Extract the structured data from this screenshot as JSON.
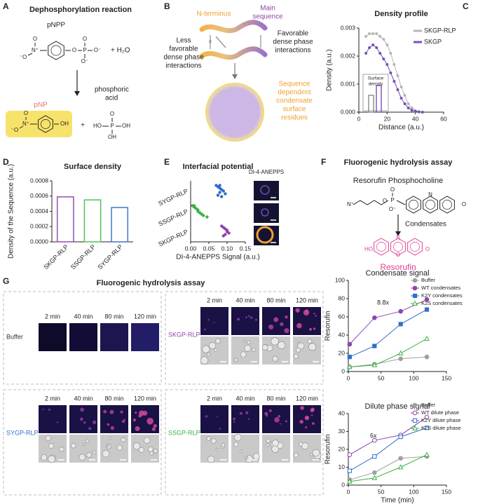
{
  "panels": {
    "letters": [
      "A",
      "B",
      "C",
      "D",
      "E",
      "F",
      "G"
    ],
    "A": {
      "title": "Dephosphorylation reaction",
      "reactant": "pNPP",
      "water": "+ H₂O",
      "pnpp_atoms": [
        "O",
        "N⁺",
        "⁻O",
        "O",
        "P",
        "O",
        "O⁻",
        "O⁻"
      ],
      "product": "pNP",
      "product_atoms": [
        "O",
        "N⁺",
        "⁻O",
        "OH"
      ],
      "plus": "+",
      "acid_lines": [
        "phosphoric",
        "acid"
      ],
      "acid_atoms": [
        "O",
        "HO",
        "P",
        "OH",
        "OH"
      ]
    },
    "B": {
      "n_terminus": "N-terminus",
      "main_sequence": [
        "Main",
        "sequence"
      ],
      "less_favorable": [
        "Less",
        "favorable",
        "dense phase",
        "interactions"
      ],
      "favorable": [
        "Favorable",
        "dense phase",
        "interactions"
      ],
      "surface": [
        "Sequence",
        "dependent",
        "condensate",
        "surface",
        "residues"
      ]
    },
    "E": {
      "image_label": "DI-4-ANEPPS"
    },
    "F": {
      "title": "Fluorogenic hydrolysis assay",
      "substrate": "Resorufin Phosphocholine",
      "substrate_atoms": [
        "N⁺",
        "O",
        "P",
        "O",
        "O⁻",
        "N",
        "O"
      ],
      "step": "Condensates",
      "product": "Resorufin",
      "product_atoms": [
        "HO",
        "O",
        "N",
        "O"
      ]
    },
    "G": {
      "title": "Fluorogenic hydrolysis assay",
      "times": [
        "2 min",
        "40 min",
        "80 min",
        "120 min"
      ],
      "samples": [
        "Buffer",
        "SKGP-RLP",
        "SYGP-RLP",
        "SSGP-RLP"
      ],
      "sample_colors": [
        "#333333",
        "#8e44ad",
        "#2e6fc9",
        "#3cb043"
      ]
    }
  },
  "chart_data": [
    {
      "type": "line",
      "title": "Density profile",
      "x_label": "Distance (a.u.)",
      "y_label": "Density (a.u.)",
      "x": [
        5,
        7.5,
        10,
        12.5,
        15,
        17.5,
        20,
        22.5,
        25,
        27.5,
        30,
        32.5,
        35,
        37.5,
        40,
        42.5,
        45
      ],
      "series": [
        {
          "name": "SKGP-RLP",
          "color": "#b5b5b5",
          "marker": "dot",
          "filled": true,
          "values": [
            0.0027,
            0.0028,
            0.0028,
            0.0028,
            0.0027,
            0.0026,
            0.0024,
            0.0021,
            0.0017,
            0.0013,
            0.0009,
            0.0006,
            0.0003,
            0.00015,
            5e-05,
            2e-05,
            0
          ]
        },
        {
          "name": "SKGP",
          "color": "#7b4fb5",
          "marker": "dot",
          "filled": true,
          "values": [
            0.0021,
            0.0023,
            0.0024,
            0.0023,
            0.0021,
            0.0019,
            0.0017,
            0.0014,
            0.0011,
            0.0008,
            0.0005,
            0.0003,
            0.00015,
            7e-05,
            3e-05,
            1e-05,
            0
          ]
        }
      ],
      "xlim": [
        0,
        60
      ],
      "xticks": [
        0,
        20,
        40,
        60
      ],
      "ylim": [
        0,
        0.003
      ],
      "yticks": [
        {
          "value": 0,
          "label": "0.000"
        },
        {
          "value": 0.001,
          "label": "0.001"
        },
        {
          "value": 0.002,
          "label": "0.002"
        },
        {
          "value": 0.003,
          "label": "0.003"
        }
      ],
      "legend": "upper right",
      "inset": {
        "title": [
          "Surface",
          "density"
        ],
        "values": [
          0.0006,
          0.00095
        ],
        "colors": [
          "#8a8a8a",
          "#7b4fb5"
        ]
      }
    },
    {
      "type": "bar",
      "title": "Surface density",
      "y_label": "Density of the Sequence (a.u.)",
      "categories": [
        "SKGP-RLP",
        "SSGP-RLP",
        "SYGP-RLP"
      ],
      "values": [
        0.00059,
        0.00055,
        0.00045
      ],
      "colors": [
        "#9b59b6",
        "#5cc45c",
        "#4a7fd0"
      ],
      "ylim": [
        0,
        0.0008
      ],
      "yticks": [
        {
          "value": 0,
          "label": "0.0000"
        },
        {
          "value": 0.0002,
          "label": "0.0002"
        },
        {
          "value": 0.0004,
          "label": "0.0004"
        },
        {
          "value": 0.0006,
          "label": "0.0006"
        },
        {
          "value": 0.0008,
          "label": "0.0008"
        }
      ]
    },
    {
      "type": "strip",
      "title": "Interfacial potential",
      "x_label": "DI-4-ANEPPS Signal (a.u.)",
      "categories": [
        "SYGP-RLP",
        "SSGP-RLP",
        "SKGP-RLP"
      ],
      "groups": [
        {
          "color": "#2e6fc9",
          "values": [
            0.07,
            0.075,
            0.08,
            0.085,
            0.09,
            0.08,
            0.095,
            0.075,
            0.085,
            0.08
          ]
        },
        {
          "color": "#3cb043",
          "values": [
            0.005,
            0.01,
            0.015,
            0.02,
            0.02,
            0.025,
            0.03,
            0.035,
            0.045,
            0.01
          ]
        },
        {
          "color": "#8e44ad",
          "values": [
            0.085,
            0.09,
            0.095,
            0.1,
            0.1,
            0.105,
            0.095,
            0.09
          ]
        }
      ],
      "xlim": [
        0,
        0.15
      ],
      "xticks": [
        {
          "value": 0,
          "label": "0.00"
        },
        {
          "value": 0.05,
          "label": "0.05"
        },
        {
          "value": 0.1,
          "label": "0.10"
        },
        {
          "value": 0.15,
          "label": "0.15"
        }
      ]
    },
    {
      "type": "line",
      "title": "Condensate signal",
      "y_label": "Resorufin",
      "annotation": "8.8x",
      "x": [
        2,
        40,
        80,
        120
      ],
      "series": [
        {
          "name": "Buffer",
          "color": "#a0a0a0",
          "marker": "circle",
          "filled": true,
          "values": [
            5,
            8,
            14,
            16
          ]
        },
        {
          "name": "WT condensates",
          "color": "#8e44ad",
          "marker": "circle",
          "filled": true,
          "values": [
            30,
            59,
            66,
            79
          ]
        },
        {
          "name": "K2Y condensates",
          "color": "#2e6fc9",
          "marker": "square",
          "filled": true,
          "values": [
            16,
            28,
            52,
            68
          ]
        },
        {
          "name": "K2S condensates",
          "color": "#3cb043",
          "marker": "triangle",
          "filled": false,
          "values": [
            5,
            7,
            20,
            36
          ]
        }
      ],
      "xlim": [
        0,
        150
      ],
      "xticks": [
        0,
        50,
        100,
        150
      ],
      "ylim": [
        0,
        100
      ],
      "yticks": [
        0,
        20,
        40,
        60,
        80,
        100
      ],
      "legend": "upper right"
    },
    {
      "type": "line",
      "title": "Dilute phase signal",
      "y_label": "Resorufin",
      "x_label": "Time (min)",
      "annotation": "6x",
      "x": [
        2,
        40,
        80,
        120
      ],
      "series": [
        {
          "name": "Buffer",
          "color": "#a0a0a0",
          "marker": "circle",
          "filled": true,
          "values": [
            3,
            7,
            15,
            16
          ]
        },
        {
          "name": "WT dilute phase",
          "color": "#8e44ad",
          "marker": "circle",
          "filled": false,
          "values": [
            17,
            25,
            28,
            38
          ]
        },
        {
          "name": "K2Y dilute phase",
          "color": "#2e6fc9",
          "marker": "square",
          "filled": false,
          "values": [
            8,
            16,
            27,
            32
          ]
        },
        {
          "name": "K2S dilute phase",
          "color": "#3cb043",
          "marker": "triangle",
          "filled": false,
          "values": [
            2,
            4,
            10,
            17
          ]
        }
      ],
      "xlim": [
        0,
        150
      ],
      "xticks": [
        0,
        50,
        100,
        150
      ],
      "ylim": [
        0,
        40
      ],
      "yticks": [
        0,
        10,
        20,
        30,
        40
      ],
      "legend": "upper right"
    }
  ]
}
